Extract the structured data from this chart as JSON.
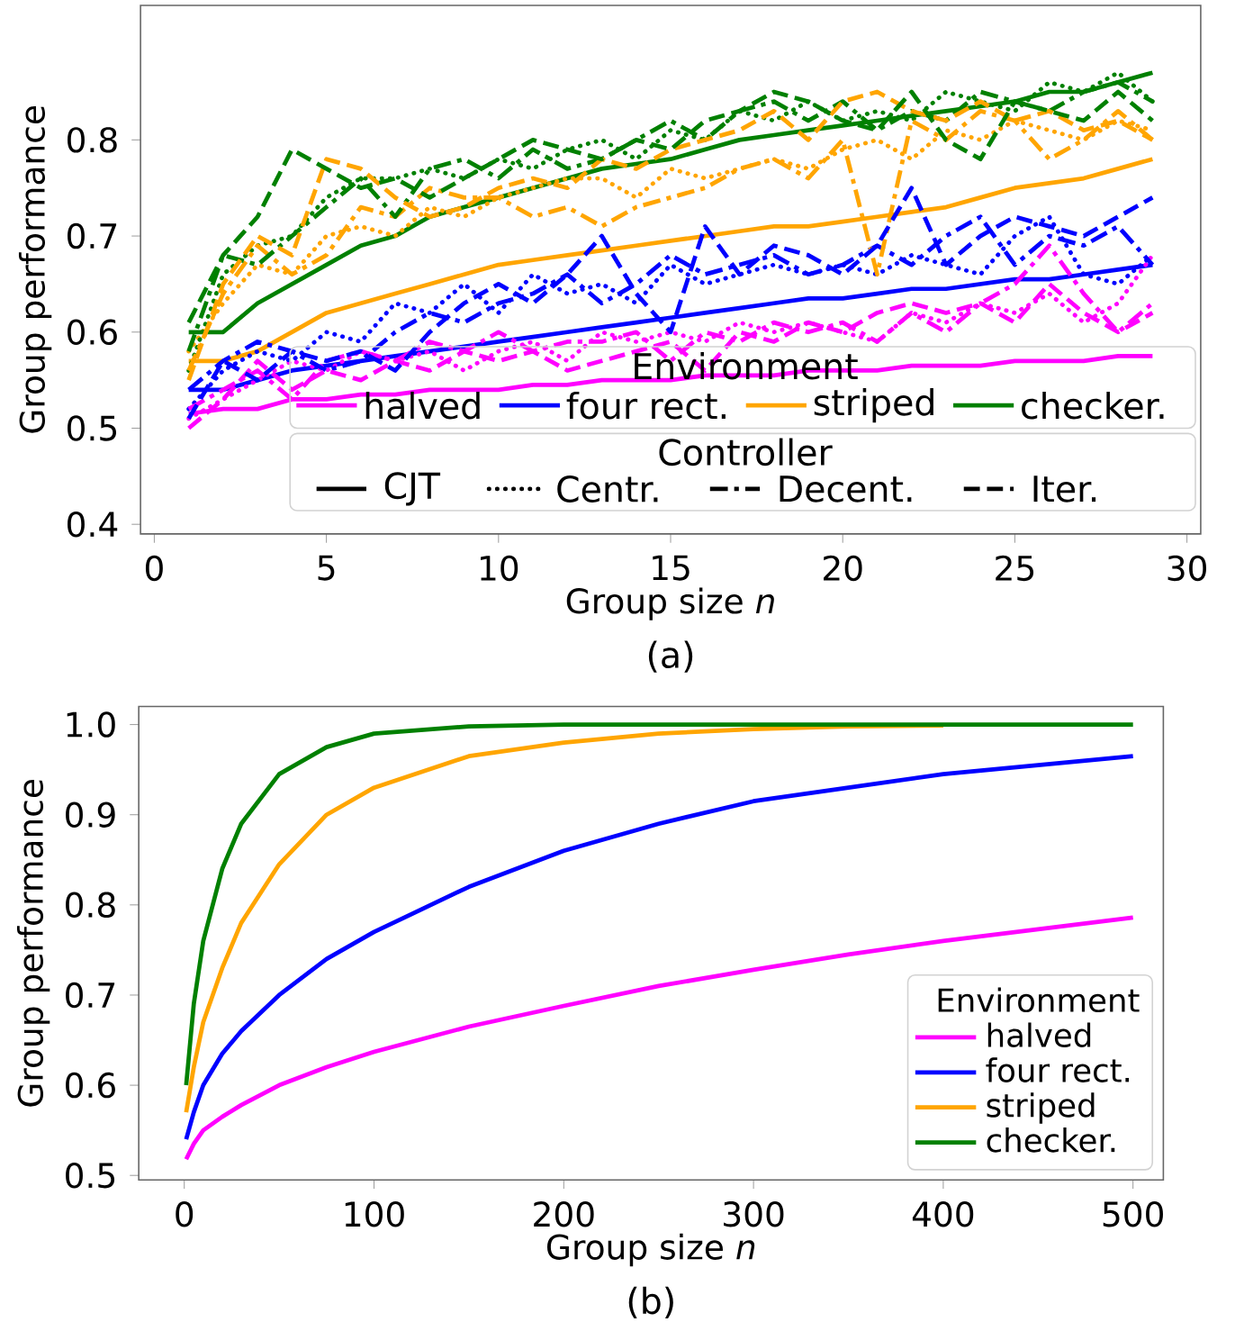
{
  "chart_data": [
    {
      "type": "line",
      "xlabel": "Group size *n*",
      "ylabel": "Group performance",
      "legend_title": "Environment",
      "legend": "bottom right",
      "annotations": [
        "(a)",
        "Controller",
        "CJT",
        "Centr.",
        "Decent.",
        "Iter."
      ],
      "x": [
        1,
        2,
        3,
        4,
        5,
        6,
        7,
        8,
        9,
        10,
        11,
        12,
        13,
        14,
        15,
        16,
        17,
        18,
        19,
        20,
        21,
        22,
        23,
        24,
        25,
        26,
        27,
        28,
        29
      ],
      "xlim": [
        -0.4,
        30.4
      ],
      "ylim": [
        0.39,
        0.94
      ],
      "xticks": [
        0,
        5,
        10,
        15,
        20,
        25,
        30
      ],
      "yticks": [
        0.4,
        0.5,
        0.6,
        0.7,
        0.8
      ],
      "series": [
        {
          "name": "halved",
          "color": "#ff00ff",
          "line_style": "solid",
          "values": [
            0.515,
            0.52,
            0.52,
            0.53,
            0.53,
            0.535,
            0.535,
            0.54,
            0.54,
            0.54,
            0.545,
            0.545,
            0.55,
            0.55,
            0.55,
            0.555,
            0.555,
            0.555,
            0.56,
            0.56,
            0.56,
            0.565,
            0.565,
            0.565,
            0.57,
            0.57,
            0.57,
            0.575,
            0.575
          ]
        },
        {
          "name": "four rect.",
          "color": "#0000ff",
          "line_style": "solid",
          "values": [
            0.54,
            0.54,
            0.55,
            0.56,
            0.565,
            0.57,
            0.575,
            0.58,
            0.585,
            0.59,
            0.595,
            0.6,
            0.605,
            0.61,
            0.615,
            0.62,
            0.625,
            0.63,
            0.635,
            0.635,
            0.64,
            0.645,
            0.645,
            0.65,
            0.655,
            0.655,
            0.66,
            0.665,
            0.67
          ]
        },
        {
          "name": "striped",
          "color": "#ffa500",
          "line_style": "solid",
          "values": [
            0.57,
            0.57,
            0.58,
            0.6,
            0.62,
            0.63,
            0.64,
            0.65,
            0.66,
            0.67,
            0.675,
            0.68,
            0.685,
            0.69,
            0.695,
            0.7,
            0.705,
            0.71,
            0.71,
            0.715,
            0.72,
            0.725,
            0.73,
            0.74,
            0.75,
            0.755,
            0.76,
            0.77,
            0.78
          ]
        },
        {
          "name": "checker.",
          "color": "#008000",
          "line_style": "solid",
          "values": [
            0.6,
            0.6,
            0.63,
            0.65,
            0.67,
            0.69,
            0.7,
            0.72,
            0.73,
            0.74,
            0.75,
            0.76,
            0.77,
            0.775,
            0.78,
            0.79,
            0.8,
            0.805,
            0.81,
            0.815,
            0.82,
            0.825,
            0.83,
            0.835,
            0.84,
            0.85,
            0.85,
            0.86,
            0.87
          ]
        },
        {
          "color": "#ff00ff",
          "line_style": "dotted",
          "values": [
            0.51,
            0.53,
            0.55,
            0.57,
            0.56,
            0.58,
            0.57,
            0.58,
            0.56,
            0.58,
            0.59,
            0.57,
            0.6,
            0.59,
            0.6,
            0.59,
            0.61,
            0.6,
            0.61,
            0.6,
            0.59,
            0.62,
            0.61,
            0.63,
            0.62,
            0.64,
            0.61,
            0.63,
            0.68
          ]
        },
        {
          "color": "#0000ff",
          "line_style": "dotted",
          "values": [
            0.52,
            0.56,
            0.58,
            0.57,
            0.6,
            0.59,
            0.63,
            0.62,
            0.65,
            0.62,
            0.66,
            0.64,
            0.65,
            0.63,
            0.67,
            0.65,
            0.66,
            0.67,
            0.66,
            0.67,
            0.66,
            0.68,
            0.67,
            0.66,
            0.7,
            0.72,
            0.66,
            0.65,
            0.68
          ]
        },
        {
          "color": "#ffa500",
          "line_style": "dotted",
          "values": [
            0.58,
            0.63,
            0.67,
            0.66,
            0.7,
            0.71,
            0.7,
            0.73,
            0.72,
            0.74,
            0.75,
            0.76,
            0.76,
            0.74,
            0.77,
            0.76,
            0.77,
            0.78,
            0.77,
            0.79,
            0.8,
            0.78,
            0.81,
            0.8,
            0.82,
            0.81,
            0.8,
            0.82,
            0.81
          ]
        },
        {
          "color": "#008000",
          "line_style": "dotted",
          "values": [
            0.56,
            0.66,
            0.69,
            0.7,
            0.74,
            0.76,
            0.76,
            0.77,
            0.76,
            0.78,
            0.77,
            0.79,
            0.8,
            0.78,
            0.81,
            0.8,
            0.83,
            0.82,
            0.84,
            0.82,
            0.83,
            0.82,
            0.85,
            0.84,
            0.83,
            0.86,
            0.85,
            0.87,
            0.84
          ]
        },
        {
          "color": "#ff00ff",
          "line_style": "dashdot",
          "values": [
            0.52,
            0.54,
            0.56,
            0.53,
            0.57,
            0.58,
            0.57,
            0.59,
            0.58,
            0.6,
            0.58,
            0.59,
            0.59,
            0.6,
            0.57,
            0.6,
            0.59,
            0.61,
            0.6,
            0.61,
            0.59,
            0.62,
            0.6,
            0.63,
            0.65,
            0.69,
            0.64,
            0.6,
            0.63
          ]
        },
        {
          "color": "#0000ff",
          "line_style": "dashdot",
          "values": [
            0.54,
            0.57,
            0.59,
            0.58,
            0.56,
            0.57,
            0.6,
            0.62,
            0.61,
            0.63,
            0.64,
            0.66,
            0.63,
            0.65,
            0.68,
            0.66,
            0.67,
            0.68,
            0.66,
            0.67,
            0.69,
            0.67,
            0.7,
            0.72,
            0.67,
            0.7,
            0.69,
            0.71,
            0.67
          ]
        },
        {
          "color": "#ffa500",
          "line_style": "dashdot",
          "values": [
            0.56,
            0.64,
            0.69,
            0.66,
            0.68,
            0.73,
            0.72,
            0.75,
            0.74,
            0.74,
            0.72,
            0.73,
            0.71,
            0.73,
            0.74,
            0.75,
            0.77,
            0.78,
            0.76,
            0.8,
            0.66,
            0.82,
            0.8,
            0.83,
            0.82,
            0.78,
            0.8,
            0.83,
            0.8
          ]
        },
        {
          "color": "#008000",
          "line_style": "dashdot",
          "values": [
            0.58,
            0.68,
            0.67,
            0.7,
            0.73,
            0.76,
            0.72,
            0.77,
            0.78,
            0.76,
            0.79,
            0.77,
            0.78,
            0.8,
            0.82,
            0.8,
            0.83,
            0.84,
            0.82,
            0.84,
            0.81,
            0.83,
            0.82,
            0.85,
            0.84,
            0.83,
            0.85,
            0.86,
            0.84
          ]
        },
        {
          "color": "#ff00ff",
          "line_style": "dashed",
          "values": [
            0.5,
            0.53,
            0.57,
            0.54,
            0.56,
            0.55,
            0.57,
            0.56,
            0.58,
            0.57,
            0.58,
            0.56,
            0.57,
            0.58,
            0.59,
            0.56,
            0.6,
            0.59,
            0.61,
            0.6,
            0.62,
            0.63,
            0.62,
            0.63,
            0.61,
            0.65,
            0.62,
            0.6,
            0.62
          ]
        },
        {
          "color": "#0000ff",
          "line_style": "dashed",
          "values": [
            0.51,
            0.57,
            0.55,
            0.58,
            0.57,
            0.58,
            0.56,
            0.6,
            0.63,
            0.65,
            0.63,
            0.66,
            0.7,
            0.64,
            0.6,
            0.71,
            0.66,
            0.69,
            0.68,
            0.66,
            0.69,
            0.75,
            0.67,
            0.7,
            0.72,
            0.71,
            0.7,
            0.72,
            0.74
          ]
        },
        {
          "color": "#ffa500",
          "line_style": "dashed",
          "values": [
            0.55,
            0.65,
            0.7,
            0.68,
            0.78,
            0.77,
            0.74,
            0.72,
            0.73,
            0.75,
            0.76,
            0.75,
            0.78,
            0.77,
            0.79,
            0.8,
            0.81,
            0.83,
            0.8,
            0.84,
            0.85,
            0.83,
            0.82,
            0.84,
            0.82,
            0.83,
            0.81,
            0.82,
            0.8
          ]
        },
        {
          "color": "#008000",
          "line_style": "dashed",
          "values": [
            0.61,
            0.68,
            0.72,
            0.79,
            0.77,
            0.75,
            0.76,
            0.74,
            0.76,
            0.78,
            0.8,
            0.79,
            0.78,
            0.8,
            0.79,
            0.82,
            0.83,
            0.85,
            0.84,
            0.82,
            0.81,
            0.85,
            0.8,
            0.78,
            0.84,
            0.83,
            0.82,
            0.85,
            0.82
          ]
        }
      ]
    },
    {
      "type": "line",
      "xlabel": "Group size *n*",
      "ylabel": "Group performance",
      "legend_title": "Environment",
      "legend": "bottom right",
      "annotations": [
        "(b)"
      ],
      "x": [
        1,
        5,
        10,
        20,
        30,
        50,
        75,
        100,
        150,
        200,
        250,
        300,
        350,
        400,
        450,
        500
      ],
      "xlim": [
        -24,
        516
      ],
      "ylim": [
        0.495,
        1.02
      ],
      "xticks": [
        0,
        100,
        200,
        300,
        400,
        500
      ],
      "yticks": [
        0.5,
        0.6,
        0.7,
        0.8,
        0.9,
        {
          "value": 1.0,
          "label": "1.0"
        }
      ],
      "series": [
        {
          "name": "halved",
          "color": "#ff00ff",
          "values": [
            0.518,
            0.535,
            0.55,
            0.565,
            0.578,
            0.6,
            0.62,
            0.637,
            0.665,
            0.688,
            0.71,
            0.728,
            0.745,
            0.76,
            0.773,
            0.786
          ]
        },
        {
          "name": "four rect.",
          "color": "#0000ff",
          "values": [
            0.54,
            0.57,
            0.6,
            0.635,
            0.66,
            0.7,
            0.74,
            0.77,
            0.82,
            0.86,
            0.89,
            0.915,
            0.93,
            0.945,
            0.955,
            0.965
          ]
        },
        {
          "name": "striped",
          "color": "#ffa500",
          "values": [
            0.57,
            0.62,
            0.67,
            0.73,
            0.78,
            0.845,
            0.9,
            0.93,
            0.965,
            0.98,
            0.99,
            0.995,
            0.998,
            0.999,
            null,
            null
          ]
        },
        {
          "name": "checker.",
          "color": "#008000",
          "values": [
            0.6,
            0.69,
            0.76,
            0.84,
            0.89,
            0.945,
            0.975,
            0.99,
            0.998,
            1.0,
            1.0,
            1.0,
            1.0,
            1.0,
            1.0,
            1.0
          ]
        }
      ]
    }
  ]
}
